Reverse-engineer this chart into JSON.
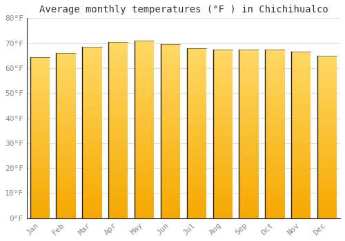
{
  "title": "Average monthly temperatures (°F ) in Chichihualco",
  "months": [
    "Jan",
    "Feb",
    "Mar",
    "Apr",
    "May",
    "Jun",
    "Jul",
    "Aug",
    "Sep",
    "Oct",
    "Nov",
    "Dec"
  ],
  "values": [
    64.5,
    66.0,
    68.5,
    70.5,
    71.0,
    69.5,
    68.0,
    67.5,
    67.5,
    67.5,
    66.5,
    65.0
  ],
  "ylim": [
    0,
    80
  ],
  "yticks": [
    0,
    10,
    20,
    30,
    40,
    50,
    60,
    70,
    80
  ],
  "ytick_labels": [
    "0°F",
    "10°F",
    "20°F",
    "30°F",
    "40°F",
    "50°F",
    "60°F",
    "70°F",
    "80°F"
  ],
  "background_color": "#ffffff",
  "grid_color": "#dddddd",
  "title_fontsize": 10,
  "tick_fontsize": 8,
  "bar_width": 0.75,
  "bar_color_bottom": "#F5A800",
  "bar_color_top": "#FFD966",
  "bar_edge_color": "#333333"
}
